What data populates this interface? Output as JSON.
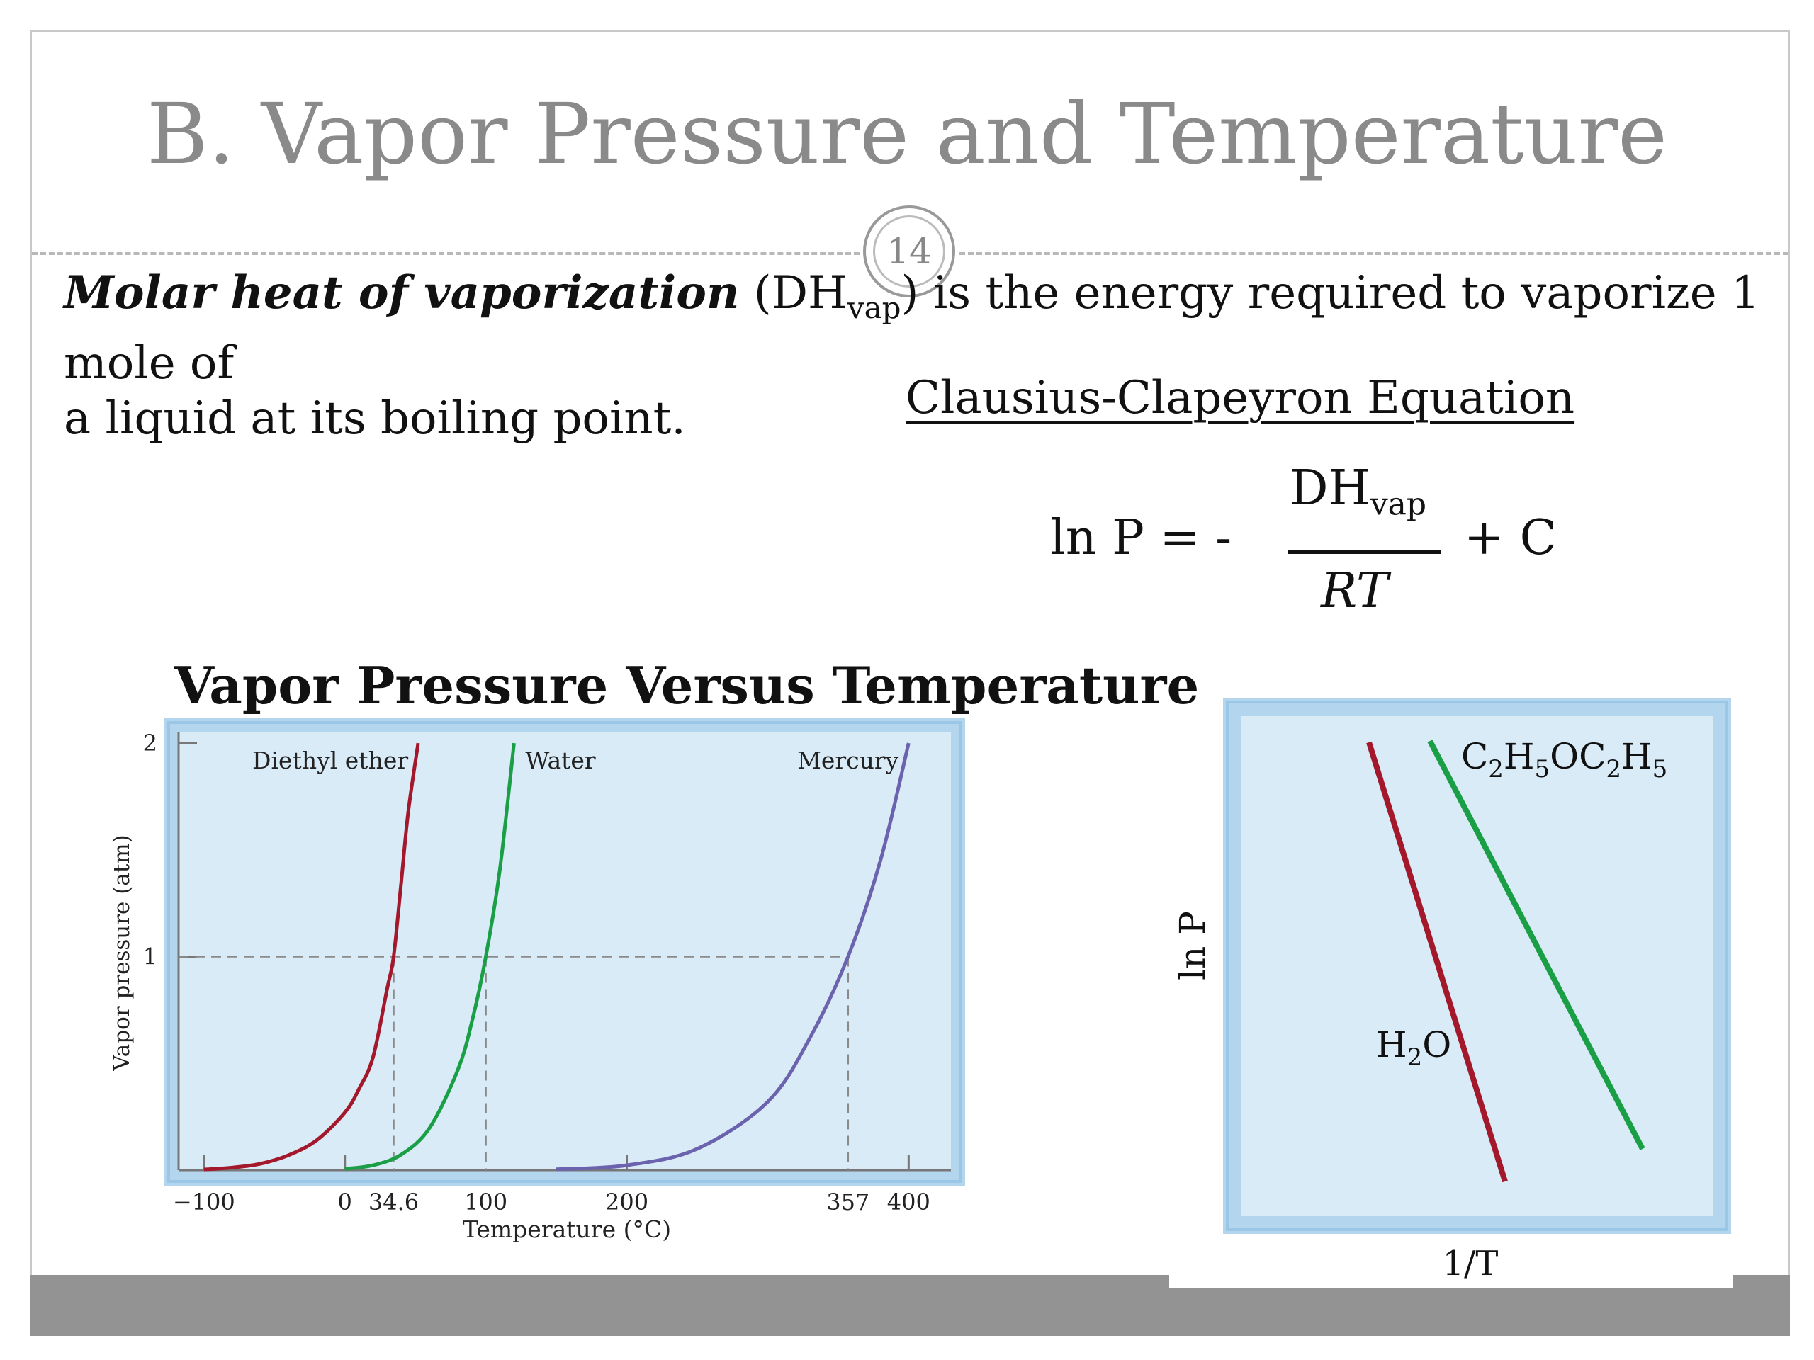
{
  "slide": {
    "title": "B. Vapor Pressure and Temperature",
    "number": "14",
    "definition": {
      "term": "Molar heat of vaporization",
      "symbol_open": "(DH",
      "symbol_sub": "vap",
      "symbol_close": ")",
      "rest_line1": " is the energy required to vaporize 1 mole of",
      "line2": "a liquid at its boiling point."
    },
    "equation": {
      "heading": "Clausius-Clapeyron Equation",
      "lhs": "ln P = -",
      "numerator_main": "DH",
      "numerator_sub": "vap",
      "denominator": "RT",
      "constant": "+ C"
    }
  },
  "chart_data": [
    {
      "type": "line",
      "title": "Vapor Pressure Versus Temperature",
      "xlabel": "Temperature (°C)",
      "ylabel": "Vapor pressure (atm)",
      "xlim": [
        -118,
        430
      ],
      "ylim": [
        0,
        2.05
      ],
      "x_ticks": [
        -100,
        0,
        34.6,
        100,
        200,
        357,
        400
      ],
      "x_tick_labels": [
        "−100",
        "0",
        "34.6",
        "100",
        "200",
        "357",
        "400"
      ],
      "y_ticks": [
        1,
        2
      ],
      "y_tick_labels": [
        "1",
        "2"
      ],
      "reference_line": {
        "y": 1,
        "x_marks": [
          34.6,
          100,
          357
        ]
      },
      "series": [
        {
          "name": "Diethyl ether",
          "color": "#a3182b",
          "x": [
            -100,
            -80,
            -60,
            -40,
            -20,
            0,
            10,
            20,
            30,
            34.6,
            40,
            45,
            52
          ],
          "y": [
            0.003,
            0.012,
            0.03,
            0.07,
            0.14,
            0.27,
            0.38,
            0.53,
            0.85,
            1.0,
            1.35,
            1.68,
            2.0
          ]
        },
        {
          "name": "Water",
          "color": "#1a9f46",
          "x": [
            0,
            20,
            40,
            60,
            80,
            90,
            100,
            110,
            120
          ],
          "y": [
            0.006,
            0.023,
            0.073,
            0.197,
            0.467,
            0.692,
            1.0,
            1.41,
            2.0
          ]
        },
        {
          "name": "Mercury",
          "color": "#6b63ad",
          "x": [
            150,
            200,
            250,
            300,
            330,
            357,
            380,
            400
          ],
          "y": [
            0.004,
            0.023,
            0.1,
            0.32,
            0.62,
            1.0,
            1.45,
            2.0
          ]
        }
      ]
    },
    {
      "type": "line",
      "xlabel": "1/T",
      "ylabel": "ln P",
      "series": [
        {
          "name": "H2O",
          "label_main": "H",
          "label_sub": "2",
          "label_end": "O",
          "color": "#a3182b"
        },
        {
          "name": "C2H5OC2H5",
          "label_parts": [
            "C",
            "2",
            "H",
            "5",
            "OC",
            "2",
            "H",
            "5"
          ],
          "color": "#1a9f46"
        }
      ]
    }
  ]
}
